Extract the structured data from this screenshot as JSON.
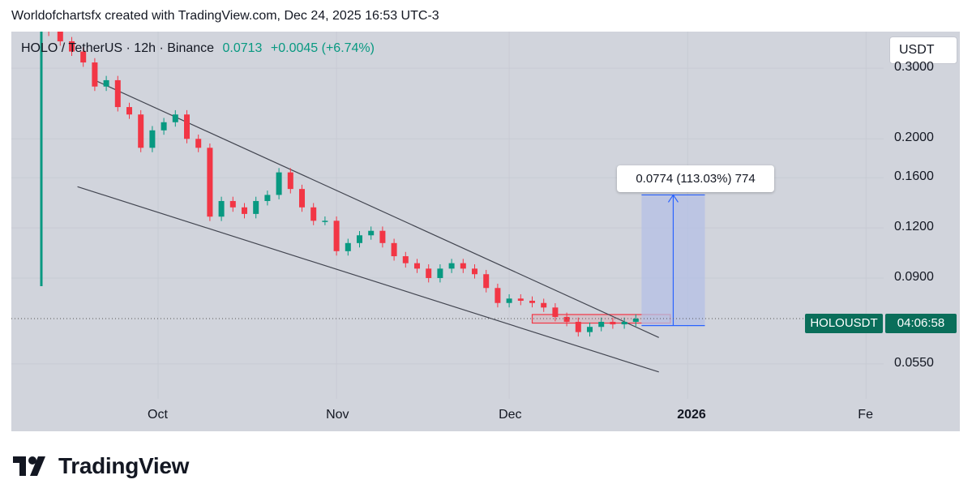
{
  "caption": "Worldofchartsfx created with TradingView.com, Dec 24, 2025 16:53 UTC-3",
  "legend": {
    "symbol": "HOLO / TetherUS · 12h · Binance",
    "price": "0.0713",
    "change": "+0.0045 (+6.74%)"
  },
  "currency_button": "USDT",
  "symbol_tag": "HOLOUSDT",
  "countdown": "04:06:58",
  "measure_label": "0.0774 (113.03%) 774",
  "brand": "TradingView",
  "colors": {
    "up": "#089981",
    "down": "#f23645",
    "background": "#d1d4dc",
    "measure_fill": "#b4c0e6",
    "measure_line": "#2962ff",
    "trendline": "#434651"
  },
  "chart_data": {
    "type": "candlestick",
    "title": "HOLO / TetherUS · 12h · Binance",
    "y_scale": "log",
    "y_ticks": [
      "0.3000",
      "0.2000",
      "0.1600",
      "0.1200",
      "0.0900",
      "0.0550"
    ],
    "x_ticks": [
      "Oct",
      "Nov",
      "Dec",
      "2026",
      "Fe"
    ],
    "ylim": [
      0.045,
      0.37
    ],
    "last_price": 0.0713,
    "series": [
      {
        "name": "HOLOUSDT",
        "x": [
          "Sep 12",
          "Sep 14",
          "Sep 16",
          "Sep 18",
          "Sep 20",
          "Sep 22",
          "Sep 24",
          "Sep 26",
          "Sep 28",
          "Sep 30",
          "Oct 2",
          "Oct 4",
          "Oct 6",
          "Oct 8",
          "Oct 10",
          "Oct 12",
          "Oct 14",
          "Oct 16",
          "Oct 18",
          "Oct 20",
          "Oct 22",
          "Oct 24",
          "Oct 26",
          "Oct 28",
          "Oct 30",
          "Nov 1",
          "Nov 3",
          "Nov 5",
          "Nov 7",
          "Nov 9",
          "Nov 11",
          "Nov 13",
          "Nov 15",
          "Nov 17",
          "Nov 19",
          "Nov 21",
          "Nov 23",
          "Nov 25",
          "Nov 27",
          "Nov 29",
          "Dec 1",
          "Dec 3",
          "Dec 5",
          "Dec 7",
          "Dec 9",
          "Dec 11",
          "Dec 13",
          "Dec 15",
          "Dec 17",
          "Dec 19",
          "Dec 21",
          "Dec 23"
        ],
        "values": [
          0.37,
          0.35,
          0.33,
          0.31,
          0.27,
          0.28,
          0.24,
          0.23,
          0.19,
          0.21,
          0.22,
          0.23,
          0.2,
          0.19,
          0.128,
          0.14,
          0.135,
          0.13,
          0.14,
          0.145,
          0.165,
          0.15,
          0.135,
          0.125,
          0.125,
          0.105,
          0.11,
          0.115,
          0.118,
          0.11,
          0.102,
          0.098,
          0.095,
          0.09,
          0.095,
          0.098,
          0.095,
          0.092,
          0.085,
          0.078,
          0.08,
          0.079,
          0.078,
          0.076,
          0.072,
          0.07,
          0.066,
          0.068,
          0.07,
          0.069,
          0.07,
          0.0713
        ]
      }
    ],
    "annotations": [
      {
        "type": "trendline",
        "from": [
          "Sep 20",
          0.28
        ],
        "to": [
          "Dec 27",
          0.064
        ]
      },
      {
        "type": "trendline",
        "from": [
          "Sep 17",
          0.152
        ],
        "to": [
          "Dec 27",
          0.0525
        ]
      },
      {
        "type": "zone",
        "x_range": [
          "Dec 5",
          "Dec 29"
        ],
        "y_range": [
          0.0695,
          0.073
        ]
      },
      {
        "type": "price_range",
        "x_range": [
          "Dec 24",
          "Jan 4"
        ],
        "y_range": [
          0.0685,
          0.145
        ],
        "label": "0.0774 (113.03%) 774"
      }
    ]
  }
}
